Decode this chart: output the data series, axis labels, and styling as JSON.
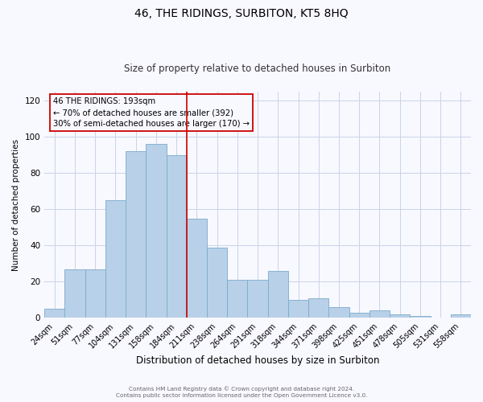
{
  "title": "46, THE RIDINGS, SURBITON, KT5 8HQ",
  "subtitle": "Size of property relative to detached houses in Surbiton",
  "xlabel": "Distribution of detached houses by size in Surbiton",
  "ylabel": "Number of detached properties",
  "categories": [
    "24sqm",
    "51sqm",
    "77sqm",
    "104sqm",
    "131sqm",
    "158sqm",
    "184sqm",
    "211sqm",
    "238sqm",
    "264sqm",
    "291sqm",
    "318sqm",
    "344sqm",
    "371sqm",
    "398sqm",
    "425sqm",
    "451sqm",
    "478sqm",
    "505sqm",
    "531sqm",
    "558sqm"
  ],
  "values": [
    5,
    27,
    27,
    65,
    92,
    96,
    90,
    55,
    39,
    21,
    21,
    26,
    10,
    11,
    6,
    3,
    4,
    2,
    1,
    0,
    2
  ],
  "bar_color": "#b8d0e8",
  "bar_edge_color": "#7aaccc",
  "vline_color": "#cc0000",
  "annotation_title": "46 THE RIDINGS: 193sqm",
  "annotation_line2": "← 70% of detached houses are smaller (392)",
  "annotation_line3": "30% of semi-detached houses are larger (170) →",
  "annotation_box_color": "#cc0000",
  "ylim": [
    0,
    125
  ],
  "yticks": [
    0,
    20,
    40,
    60,
    80,
    100,
    120
  ],
  "footer_line1": "Contains HM Land Registry data © Crown copyright and database right 2024.",
  "footer_line2": "Contains public sector information licensed under the Open Government Licence v3.0.",
  "title_fontsize": 10,
  "subtitle_fontsize": 8.5,
  "xlabel_fontsize": 8.5,
  "ylabel_fontsize": 7.5,
  "tick_fontsize": 7,
  "ytick_fontsize": 7.5,
  "background_color": "#f8f8ff",
  "grid_color": "#c8d4e8",
  "vline_index": 6.5
}
